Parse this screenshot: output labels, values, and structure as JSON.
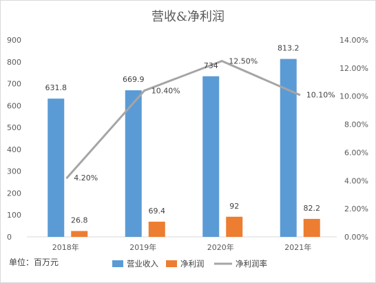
{
  "chart_data": {
    "type": "bar",
    "title": "营收&净利润",
    "unit_note": "单位：百万元",
    "categories": [
      "2018年",
      "2019年",
      "2020年",
      "2021年"
    ],
    "series": [
      {
        "name": "营业收入",
        "type": "bar",
        "axis": "left",
        "color": "#5b9bd5",
        "values": [
          631.8,
          669.9,
          734,
          813.2
        ],
        "labels": [
          "631.8",
          "669.9",
          "734",
          "813.2"
        ]
      },
      {
        "name": "净利润",
        "type": "bar",
        "axis": "left",
        "color": "#ed7d31",
        "values": [
          26.8,
          69.4,
          92,
          82.2
        ],
        "labels": [
          "26.8",
          "69.4",
          "92",
          "82.2"
        ]
      },
      {
        "name": "净利润率",
        "type": "line",
        "axis": "right",
        "color": "#a5a5a5",
        "values": [
          4.2,
          10.4,
          12.5,
          10.1
        ],
        "labels": [
          "4.20%",
          "10.40%",
          "12.50%",
          "10.10%"
        ]
      }
    ],
    "y_left": {
      "min": 0,
      "max": 900,
      "step": 100,
      "ticks": [
        "0",
        "100",
        "200",
        "300",
        "400",
        "500",
        "600",
        "700",
        "800",
        "900"
      ]
    },
    "y_right": {
      "min": 0,
      "max": 14,
      "step": 2,
      "ticks": [
        "0.00%",
        "2.00%",
        "4.00%",
        "6.00%",
        "8.00%",
        "10.00%",
        "12.00%",
        "14.00%"
      ]
    },
    "grid": false,
    "legend_position": "bottom"
  }
}
